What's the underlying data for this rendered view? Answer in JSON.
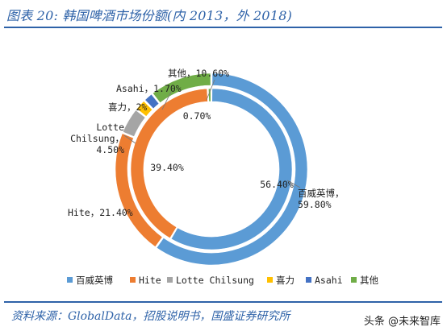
{
  "title": "图表 20: 韩国啤酒市场份额(内 2013，外 2018)",
  "source": "资料来源：GlobalData，招股说明书，国盛证券研究所",
  "watermark": "头条 @未来智库",
  "chart_data": {
    "type": "pie",
    "legend_position": "bottom",
    "categories": [
      "百威英博",
      "Hite",
      "Lotte Chilsung",
      "喜力",
      "Asahi",
      "其他"
    ],
    "colors": [
      "#5b9bd5",
      "#ed7d31",
      "#a5a5a5",
      "#ffc000",
      "#4472c4",
      "#70ad47"
    ],
    "series": [
      {
        "values": [
          56.4,
          39.4,
          0,
          0,
          0,
          0.7
        ],
        "data_labels": [
          "56.40%",
          "39.40%",
          "",
          "",
          "",
          "0.70%"
        ]
      },
      {
        "values": [
          59.8,
          21.4,
          4.5,
          2.0,
          1.7,
          10.6
        ],
        "data_labels": [
          "百威英博，\n59.80%",
          "Hite，21.40%",
          "Lotte\nChilsung，\n4.50%",
          "喜力，2%",
          "Asahi，1.70%",
          "其他，10.60%"
        ]
      }
    ]
  }
}
